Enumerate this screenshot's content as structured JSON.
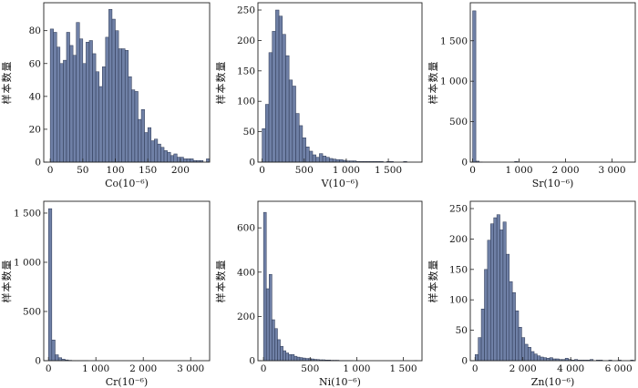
{
  "colors": {
    "bar_fill": "#6f80a6",
    "bar_edge": "#2a3550",
    "axis": "#222222"
  },
  "chart_data": [
    {
      "type": "bar",
      "element": "Co",
      "xlabel": "Co(10⁻⁶)",
      "ylabel": "样本数量",
      "xlim": [
        -10,
        245
      ],
      "ylim": [
        0,
        97
      ],
      "xticks": [
        0,
        50,
        100,
        150,
        200
      ],
      "xtick_labels": [
        "0",
        "50",
        "100",
        "150",
        "200"
      ],
      "yticks": [
        0,
        20,
        40,
        60,
        80
      ],
      "ytick_labels": [
        "0",
        "20",
        "40",
        "60",
        "80"
      ],
      "bin_start": 0,
      "bin_width": 5,
      "counts": [
        81,
        79,
        70,
        60,
        62,
        79,
        71,
        65,
        85,
        75,
        60,
        73,
        74,
        66,
        55,
        46,
        58,
        76,
        93,
        87,
        80,
        69,
        69,
        68,
        52,
        44,
        43,
        26,
        32,
        18,
        21,
        13,
        14,
        11,
        9,
        7,
        6,
        4,
        5,
        3,
        3,
        2,
        2,
        2,
        1,
        1,
        1,
        0,
        2
      ]
    },
    {
      "type": "bar",
      "element": "V",
      "xlabel": "V(10⁻⁶)",
      "ylabel": "样本数量",
      "xlim": [
        -50,
        1900
      ],
      "ylim": [
        0,
        262
      ],
      "xticks": [
        0,
        500,
        1000,
        1500
      ],
      "xtick_labels": [
        "0",
        "500",
        "1 000",
        "1 500"
      ],
      "yticks": [
        0,
        50,
        100,
        150,
        200,
        250
      ],
      "ytick_labels": [
        "0",
        "50",
        "100",
        "150",
        "200",
        "250"
      ],
      "bin_start": 0,
      "bin_width": 40,
      "counts": [
        55,
        95,
        180,
        215,
        250,
        240,
        210,
        175,
        135,
        125,
        80,
        60,
        40,
        25,
        18,
        12,
        8,
        14,
        10,
        8,
        6,
        5,
        4,
        4,
        3,
        2,
        2,
        2,
        1,
        1,
        1,
        1,
        1,
        1,
        1,
        1,
        0,
        1,
        1,
        0,
        0,
        0,
        1,
        0,
        0,
        0,
        0,
        0,
        0,
        0,
        0,
        0,
        0,
        0,
        0,
        0,
        0,
        0,
        0,
        0,
        0,
        0,
        0,
        0,
        0,
        0,
        0,
        0,
        0,
        0,
        0,
        0,
        0,
        0,
        0,
        1
      ]
    },
    {
      "type": "bar",
      "element": "Sr",
      "xlabel": "Sr(10⁻⁶)",
      "ylabel": "样本数量",
      "xlim": [
        -50,
        3500
      ],
      "ylim": [
        0,
        1970
      ],
      "xticks": [
        0,
        1000,
        2000,
        3000
      ],
      "xtick_labels": [
        "0",
        "1 000",
        "2 000",
        "3 000"
      ],
      "yticks": [
        0,
        500,
        1000,
        1500
      ],
      "ytick_labels": [
        "0",
        "500",
        "1 000",
        "1 500"
      ],
      "bin_start": 0,
      "bin_width": 70,
      "counts": [
        1870,
        12,
        2
      ]
    },
    {
      "type": "bar",
      "element": "Cr",
      "xlabel": "Cr(10⁻⁶)",
      "ylabel": "样本数量",
      "xlim": [
        -100,
        3400
      ],
      "ylim": [
        0,
        1620
      ],
      "xticks": [
        0,
        1000,
        2000,
        3000
      ],
      "xtick_labels": [
        "0",
        "1 000",
        "2 000",
        "3 000"
      ],
      "yticks": [
        0,
        500,
        1000,
        1500
      ],
      "ytick_labels": [
        "0",
        "500",
        "1 000",
        "1 500"
      ],
      "bin_start": 0,
      "bin_width": 70,
      "counts": [
        1545,
        210,
        60,
        30,
        15,
        8,
        4,
        2,
        1,
        1,
        1,
        1
      ]
    },
    {
      "type": "bar",
      "element": "Ni",
      "xlabel": "Ni(10⁻⁶)",
      "ylabel": "样本数量",
      "xlim": [
        -60,
        1700
      ],
      "ylim": [
        0,
        720
      ],
      "xticks": [
        0,
        500,
        1000,
        1500
      ],
      "xtick_labels": [
        "0",
        "500",
        "1 000",
        "1 500"
      ],
      "yticks": [
        0,
        200,
        400,
        600
      ],
      "ytick_labels": [
        "0",
        "200",
        "400",
        "600"
      ],
      "bin_start": 0,
      "bin_width": 30,
      "counts": [
        670,
        325,
        390,
        185,
        145,
        95,
        65,
        45,
        35,
        28,
        28,
        20,
        16,
        14,
        12,
        10,
        10,
        8,
        6,
        5,
        4,
        4,
        3,
        3,
        2,
        2,
        2,
        1,
        1,
        1,
        1,
        1,
        0,
        1,
        0,
        0,
        0,
        0,
        0,
        0,
        0,
        0,
        0,
        0,
        0,
        0,
        0,
        0,
        0,
        0,
        0,
        0,
        0,
        0,
        1
      ]
    },
    {
      "type": "bar",
      "element": "Zn",
      "xlabel": "Zn(10⁻⁶)",
      "ylabel": "样本数量",
      "xlim": [
        -200,
        6700
      ],
      "ylim": [
        0,
        262
      ],
      "xticks": [
        0,
        2000,
        4000,
        6000
      ],
      "xtick_labels": [
        "0",
        "2 000",
        "4 000",
        "6 000"
      ],
      "yticks": [
        0,
        50,
        100,
        150,
        200,
        250
      ],
      "ytick_labels": [
        "0",
        "50",
        "100",
        "150",
        "200",
        "250"
      ],
      "bin_start": 0,
      "bin_width": 130,
      "counts": [
        10,
        38,
        85,
        150,
        198,
        225,
        235,
        240,
        215,
        228,
        175,
        130,
        112,
        82,
        55,
        38,
        27,
        22,
        15,
        11,
        8,
        6,
        5,
        4,
        5,
        3,
        3,
        2,
        2,
        4,
        2,
        1,
        2,
        1,
        1,
        1,
        1,
        2,
        0,
        1,
        1,
        0,
        0,
        1,
        0,
        0,
        1,
        0,
        0,
        0,
        1
      ]
    }
  ]
}
